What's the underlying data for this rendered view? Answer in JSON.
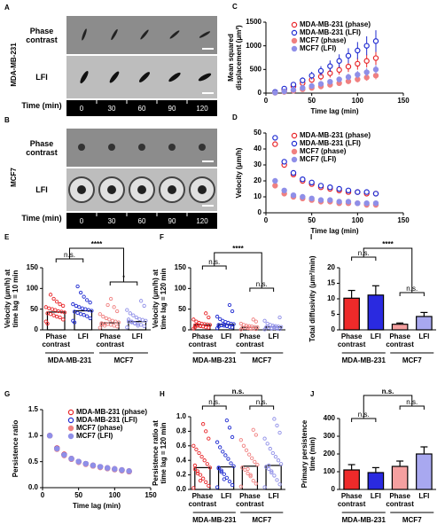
{
  "image_panels": [
    {
      "label": "A",
      "cell_line": "MDA-MB-231",
      "rows": [
        "Phase contrast",
        "LFI"
      ],
      "time_label": "Time (min)",
      "times": [
        0,
        30,
        60,
        90,
        120
      ]
    },
    {
      "label": "B",
      "cell_line": "MCF7",
      "rows": [
        "Phase contrast",
        "LFI"
      ],
      "time_label": "Time (min)",
      "times": [
        0,
        30,
        60,
        90,
        120
      ]
    }
  ],
  "chart_data": [
    {
      "type": "line",
      "label": "C",
      "xlabel": "Time lag (min)",
      "ylabel": [
        "Mean squared",
        "displacement (μm²)"
      ],
      "xlim": [
        0,
        150
      ],
      "xticks": [
        0,
        50,
        100,
        150
      ],
      "ylim": [
        0,
        1500
      ],
      "yticks": [
        0,
        500,
        1000,
        1500
      ],
      "x": [
        10,
        20,
        30,
        40,
        50,
        60,
        70,
        80,
        90,
        100,
        110,
        120
      ],
      "series": [
        {
          "name": "MDA-MB-231 (phase)",
          "color": "#e8262a",
          "marker": "open",
          "values": [
            20,
            70,
            140,
            210,
            280,
            350,
            420,
            490,
            560,
            620,
            680,
            740
          ],
          "errors": [
            5,
            15,
            30,
            45,
            60,
            75,
            90,
            100,
            115,
            125,
            135,
            150
          ]
        },
        {
          "name": "MDA-MB-231 (LFI)",
          "color": "#1f2bd1",
          "marker": "open",
          "values": [
            25,
            95,
            180,
            270,
            370,
            470,
            570,
            680,
            790,
            900,
            1000,
            1100
          ],
          "errors": [
            5,
            20,
            40,
            60,
            80,
            100,
            120,
            140,
            160,
            180,
            200,
            230
          ]
        },
        {
          "name": "MCF7 (phase)",
          "color": "#f08080",
          "marker": "filled",
          "values": [
            8,
            25,
            50,
            80,
            110,
            140,
            175,
            210,
            250,
            290,
            330,
            370
          ],
          "errors": [
            2,
            6,
            12,
            18,
            25,
            32,
            40,
            48,
            55,
            62,
            70,
            80
          ]
        },
        {
          "name": "MCF7 (LFI)",
          "color": "#8f8fe8",
          "marker": "filled",
          "values": [
            10,
            35,
            70,
            110,
            150,
            195,
            240,
            290,
            340,
            390,
            440,
            500
          ],
          "errors": [
            3,
            8,
            15,
            22,
            30,
            40,
            50,
            60,
            70,
            80,
            90,
            100
          ]
        }
      ]
    },
    {
      "type": "line",
      "label": "D",
      "xlabel": "Time lag (min)",
      "ylabel": [
        "Velocity (μm/h)"
      ],
      "xlim": [
        0,
        150
      ],
      "xticks": [
        0,
        50,
        100,
        150
      ],
      "ylim": [
        0,
        50
      ],
      "yticks": [
        0,
        10,
        20,
        30,
        40,
        50
      ],
      "x": [
        10,
        20,
        30,
        40,
        50,
        60,
        70,
        80,
        90,
        100,
        110,
        120
      ],
      "series": [
        {
          "name": "MDA-MB-231 (phase)",
          "color": "#e8262a",
          "marker": "open",
          "values": [
            43,
            30,
            24,
            20,
            18,
            16,
            15,
            14,
            13,
            13,
            12,
            12
          ]
        },
        {
          "name": "MDA-MB-231 (LFI)",
          "color": "#1f2bd1",
          "marker": "open",
          "values": [
            47,
            32,
            25,
            21,
            19,
            17,
            16,
            15,
            14,
            13,
            13,
            12
          ]
        },
        {
          "name": "MCF7 (phase)",
          "color": "#f08080",
          "marker": "filled",
          "values": [
            17,
            12,
            10,
            9,
            8,
            7,
            7,
            6,
            6,
            6,
            5,
            5
          ]
        },
        {
          "name": "MCF7 (LFI)",
          "color": "#8f8fe8",
          "marker": "filled",
          "values": [
            20,
            14,
            11,
            10,
            9,
            8,
            8,
            7,
            7,
            6,
            6,
            6
          ]
        }
      ]
    },
    {
      "type": "bar",
      "label": "E",
      "ylabel": [
        "Velocity (μm/h) at",
        "time lag = 10 min"
      ],
      "ylim": [
        0,
        150
      ],
      "yticks": [
        0,
        50,
        100,
        150
      ],
      "bar_fill": false,
      "categories": [
        "Phase contrast",
        "LFI",
        "Phase contrast",
        "LFI"
      ],
      "groups": [
        "MDA-MB-231",
        "MCF7"
      ],
      "colors": [
        "#e8262a",
        "#1f2bd1",
        "#f08080",
        "#8f8fe8"
      ],
      "values": [
        43,
        46,
        17,
        20
      ],
      "points": [
        [
          20,
          25,
          30,
          32,
          35,
          38,
          40,
          42,
          44,
          45,
          48,
          50,
          52,
          55,
          58,
          62,
          68,
          75,
          85,
          15
        ],
        [
          22,
          28,
          33,
          36,
          38,
          41,
          44,
          46,
          48,
          50,
          52,
          55,
          58,
          62,
          66,
          72,
          80,
          90,
          105,
          18
        ],
        [
          5,
          8,
          10,
          12,
          14,
          15,
          16,
          18,
          20,
          22,
          25,
          28,
          32,
          38,
          45,
          55,
          75,
          60,
          10,
          13
        ],
        [
          6,
          9,
          12,
          14,
          16,
          18,
          20,
          22,
          24,
          26,
          30,
          35,
          40,
          48,
          58,
          70,
          10,
          15,
          20,
          25
        ]
      ],
      "annotations": [
        "****",
        "n.s.",
        "*"
      ]
    },
    {
      "type": "bar",
      "label": "F",
      "ylabel": [
        "Velocity (μm/h) at",
        "time lag = 120 min"
      ],
      "ylim": [
        0,
        150
      ],
      "yticks": [
        0,
        50,
        100,
        150
      ],
      "bar_fill": false,
      "categories": [
        "Phase contrast",
        "LFI",
        "Phase contrast",
        "LFI"
      ],
      "groups": [
        "MDA-MB-231",
        "MCF7"
      ],
      "colors": [
        "#e8262a",
        "#1f2bd1",
        "#f08080",
        "#8f8fe8"
      ],
      "values": [
        12,
        13,
        6,
        7
      ],
      "points": [
        [
          3,
          5,
          6,
          8,
          9,
          10,
          11,
          12,
          13,
          14,
          15,
          17,
          20,
          25,
          30,
          40,
          8,
          10,
          12,
          6
        ],
        [
          4,
          6,
          7,
          9,
          10,
          11,
          12,
          14,
          15,
          17,
          19,
          22,
          26,
          32,
          45,
          60,
          9,
          13,
          11,
          8
        ],
        [
          1,
          2,
          3,
          3,
          4,
          5,
          5,
          6,
          7,
          8,
          9,
          10,
          12,
          15,
          20,
          25,
          4,
          6
        ],
        [
          1,
          2,
          3,
          4,
          4,
          5,
          6,
          7,
          8,
          9,
          10,
          12,
          15,
          22,
          30,
          5,
          7,
          3
        ]
      ],
      "annotations": [
        "****",
        "n.s.",
        "n.s."
      ]
    },
    {
      "type": "bar",
      "label": "I",
      "ylabel": [
        "Total diffusivity (μm²/min)"
      ],
      "ylim": [
        0,
        20
      ],
      "yticks": [
        0,
        5,
        10,
        15,
        20
      ],
      "bar_fill": true,
      "categories": [
        "Phase contrast",
        "LFI",
        "Phase contrast",
        "LFI"
      ],
      "groups": [
        "MDA-MB-231",
        "MCF7"
      ],
      "colors": [
        "#ee2a2a",
        "#2a2ae0",
        "#f5a0a0",
        "#a8a8f0"
      ],
      "values": [
        10.2,
        11.2,
        1.8,
        4.3
      ],
      "errors": [
        2.5,
        3,
        0.4,
        1.3
      ],
      "annotations": [
        "****",
        "n.s.",
        "n.s."
      ]
    },
    {
      "type": "line",
      "label": "G",
      "xlabel": "Time lag (min)",
      "ylabel": [
        "Persistence ratio"
      ],
      "xlim": [
        0,
        150
      ],
      "xticks": [
        0,
        50,
        100,
        150
      ],
      "ylim": [
        0,
        1.5
      ],
      "yticks": [
        {
          "value": 0,
          "label": "0.0"
        },
        0.5,
        {
          "value": 1,
          "label": "1.0"
        },
        1.5
      ],
      "x": [
        10,
        20,
        30,
        40,
        50,
        60,
        70,
        80,
        90,
        100,
        110,
        120
      ],
      "series": [
        {
          "name": "MDA-MB-231 (phase)",
          "color": "#e8262a",
          "marker": "open",
          "values": [
            1.0,
            0.76,
            0.64,
            0.56,
            0.5,
            0.46,
            0.43,
            0.4,
            0.38,
            0.36,
            0.34,
            0.32
          ]
        },
        {
          "name": "MDA-MB-231 (LFI)",
          "color": "#1f2bd1",
          "marker": "open",
          "values": [
            1.0,
            0.75,
            0.63,
            0.55,
            0.5,
            0.46,
            0.42,
            0.4,
            0.37,
            0.35,
            0.33,
            0.31
          ]
        },
        {
          "name": "MCF7 (phase)",
          "color": "#f08080",
          "marker": "filled",
          "values": [
            1.0,
            0.74,
            0.62,
            0.55,
            0.49,
            0.45,
            0.42,
            0.39,
            0.37,
            0.35,
            0.33,
            0.31
          ]
        },
        {
          "name": "MCF7 (LFI)",
          "color": "#8f8fe8",
          "marker": "filled",
          "values": [
            1.0,
            0.75,
            0.63,
            0.56,
            0.5,
            0.46,
            0.43,
            0.4,
            0.38,
            0.36,
            0.34,
            0.32
          ]
        }
      ]
    },
    {
      "type": "bar",
      "label": "H",
      "ylabel": [
        "Persistence ratio at",
        "time lag = 120 min"
      ],
      "ylim": [
        0,
        1
      ],
      "yticks": [
        {
          "value": 0,
          "label": "0.0"
        },
        0.2,
        0.4,
        0.6,
        0.8,
        {
          "value": 1,
          "label": "1.0"
        }
      ],
      "bar_fill": false,
      "categories": [
        "Phase contrast",
        "LFI",
        "Phase contrast",
        "LFI"
      ],
      "groups": [
        "MDA-MB-231",
        "MCF7"
      ],
      "colors": [
        "#e8262a",
        "#1f2bd1",
        "#f08080",
        "#8f8fe8"
      ],
      "values": [
        0.3,
        0.31,
        0.32,
        0.33
      ],
      "points": [
        [
          0.02,
          0.05,
          0.1,
          0.15,
          0.2,
          0.25,
          0.28,
          0.3,
          0.35,
          0.4,
          0.45,
          0.5,
          0.55,
          0.6,
          0.7,
          0.8,
          0.9,
          0.12,
          0.22,
          0.33
        ],
        [
          0.03,
          0.06,
          0.11,
          0.16,
          0.21,
          0.26,
          0.29,
          0.32,
          0.36,
          0.42,
          0.47,
          0.52,
          0.58,
          0.65,
          0.72,
          0.85,
          0.95,
          0.14,
          0.24,
          0.3
        ],
        [
          0.04,
          0.08,
          0.12,
          0.18,
          0.22,
          0.27,
          0.3,
          0.34,
          0.38,
          0.43,
          0.48,
          0.54,
          0.6,
          0.68,
          0.75,
          0.82,
          0.2,
          0.28
        ],
        [
          0.03,
          0.07,
          0.13,
          0.19,
          0.23,
          0.28,
          0.31,
          0.35,
          0.4,
          0.45,
          0.5,
          0.56,
          0.63,
          0.7,
          0.78,
          0.88,
          0.97,
          0.25,
          0.33
        ]
      ],
      "annotations": [
        "n.s.",
        "n.s.",
        "n.s."
      ]
    },
    {
      "type": "bar",
      "label": "J",
      "ylabel": [
        "Primary persistence",
        "time (min)"
      ],
      "ylim": [
        0,
        400
      ],
      "yticks": [
        0,
        100,
        200,
        300,
        400
      ],
      "bar_fill": true,
      "categories": [
        "Phase contrast",
        "LFI",
        "Phase contrast",
        "LFI"
      ],
      "groups": [
        "MDA-MB-231",
        "MCF7"
      ],
      "colors": [
        "#ee2a2a",
        "#2a2ae0",
        "#f5a0a0",
        "#a8a8f0"
      ],
      "values": [
        110,
        95,
        130,
        200
      ],
      "errors": [
        30,
        28,
        30,
        40
      ],
      "annotations": [
        "n.s.",
        "n.s.",
        "n.s."
      ]
    }
  ]
}
